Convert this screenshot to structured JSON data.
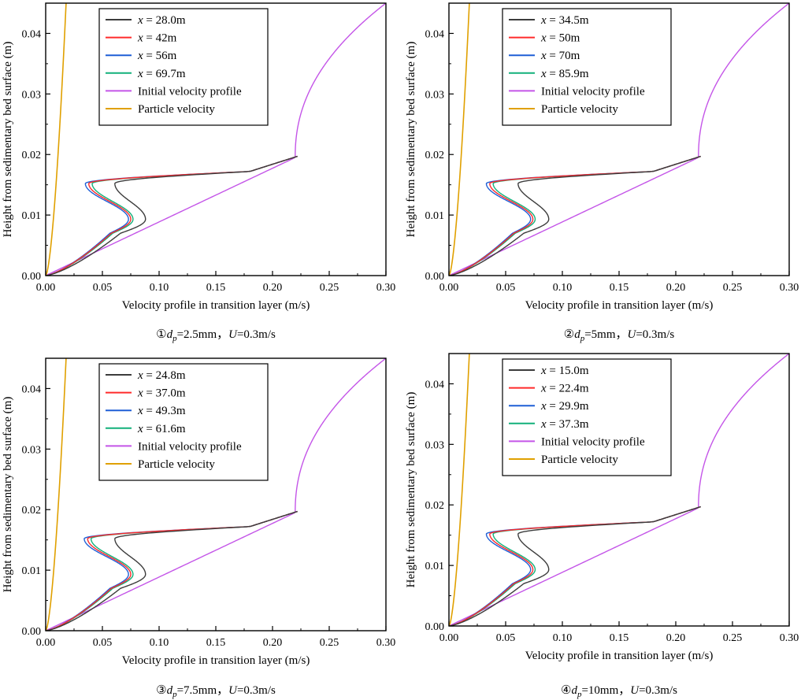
{
  "figure": {
    "line_colors": {
      "s1": "#3c3c3c",
      "s2": "#ff2a2a",
      "s3": "#1f5fd6",
      "s4": "#12b07a",
      "initial": "#c455e8",
      "particle": "#e0a000"
    }
  },
  "chart_data": [
    {
      "type": "line",
      "panel_id": "p1",
      "caption_num": "①",
      "caption_var": "d",
      "caption_sub": "p",
      "caption_eq": "=2.5mm，",
      "caption_u": "U",
      "caption_u_val": "=0.3m/s",
      "xlabel": "Velocity profile in transition layer (m/s)",
      "ylabel": "Height from sedimentary bed surface (m)",
      "xlim": [
        0,
        0.3
      ],
      "ylim": [
        0,
        0.045
      ],
      "xticks": [
        "0.00",
        "0.05",
        "0.10",
        "0.15",
        "0.20",
        "0.25",
        "0.30"
      ],
      "yticks": [
        "0.00",
        "0.01",
        "0.02",
        "0.03",
        "0.04"
      ],
      "legend_var": "x",
      "series": [
        {
          "key": "s1",
          "label": "= 28.0m",
          "min_u": 0.061,
          "bulge_u": 0.088
        },
        {
          "key": "s2",
          "label": "= 42m",
          "min_u": 0.038,
          "bulge_u": 0.075
        },
        {
          "key": "s3",
          "label": "= 56m",
          "min_u": 0.035,
          "bulge_u": 0.073
        },
        {
          "key": "s4",
          "label": "= 69.7m",
          "min_u": 0.041,
          "bulge_u": 0.077
        }
      ],
      "initial_label": "Initial velocity profile",
      "particle_label": "Particle velocity"
    },
    {
      "type": "line",
      "panel_id": "p2",
      "caption_num": "②",
      "caption_var": "d",
      "caption_sub": "p",
      "caption_eq": "=5mm，",
      "caption_u": "U",
      "caption_u_val": "=0.3m/s",
      "xlabel": "Velocity profile in transition layer (m/s)",
      "ylabel": "Height from sedimentary bed surface (m)",
      "xlim": [
        0,
        0.3
      ],
      "ylim": [
        0,
        0.045
      ],
      "xticks": [
        "0.00",
        "0.05",
        "0.10",
        "0.15",
        "0.20",
        "0.25",
        "0.30"
      ],
      "yticks": [
        "0.00",
        "0.01",
        "0.02",
        "0.03",
        "0.04"
      ],
      "legend_var": "x",
      "series": [
        {
          "key": "s1",
          "label": "= 34.5m",
          "min_u": 0.061,
          "bulge_u": 0.088
        },
        {
          "key": "s2",
          "label": "= 50m",
          "min_u": 0.036,
          "bulge_u": 0.074
        },
        {
          "key": "s3",
          "label": "= 70m",
          "min_u": 0.033,
          "bulge_u": 0.072
        },
        {
          "key": "s4",
          "label": "= 85.9m",
          "min_u": 0.039,
          "bulge_u": 0.076
        }
      ],
      "initial_label": "Initial velocity profile",
      "particle_label": "Particle velocity"
    },
    {
      "type": "line",
      "panel_id": "p3",
      "caption_num": "③",
      "caption_var": "d",
      "caption_sub": "p",
      "caption_eq": "=7.5mm，",
      "caption_u": "U",
      "caption_u_val": "=0.3m/s",
      "xlabel": "Velocity profile in transition layer (m/s)",
      "ylabel": "Height from sedimentary bed surface (m)",
      "xlim": [
        0,
        0.3
      ],
      "ylim": [
        0,
        0.045
      ],
      "xticks": [
        "0.00",
        "0.05",
        "0.10",
        "0.15",
        "0.20",
        "0.25",
        "0.30"
      ],
      "yticks": [
        "0.00",
        "0.01",
        "0.02",
        "0.03",
        "0.04"
      ],
      "legend_var": "x",
      "series": [
        {
          "key": "s1",
          "label": "= 24.8m",
          "min_u": 0.061,
          "bulge_u": 0.088
        },
        {
          "key": "s2",
          "label": "= 37.0m",
          "min_u": 0.037,
          "bulge_u": 0.075
        },
        {
          "key": "s3",
          "label": "= 49.3m",
          "min_u": 0.034,
          "bulge_u": 0.073
        },
        {
          "key": "s4",
          "label": "= 61.6m",
          "min_u": 0.04,
          "bulge_u": 0.077
        }
      ],
      "initial_label": "Initial velocity profile",
      "particle_label": "Particle velocity"
    },
    {
      "type": "line",
      "panel_id": "p4",
      "caption_num": "④",
      "caption_var": "d",
      "caption_sub": "p",
      "caption_eq": "=10mm，",
      "caption_u": "U",
      "caption_u_val": "=0.3m/s",
      "xlabel": "Velocity profile in transition layer (m/s)",
      "ylabel": "Height from sedimentary bed surface (m)",
      "xlim": [
        0,
        0.3
      ],
      "ylim": [
        0,
        0.045
      ],
      "xticks": [
        "0.00",
        "0.05",
        "0.10",
        "0.15",
        "0.20",
        "0.25",
        "0.30"
      ],
      "yticks": [
        "0.00",
        "0.01",
        "0.02",
        "0.03",
        "0.04"
      ],
      "legend_var": "x",
      "series": [
        {
          "key": "s1",
          "label": "= 15.0m",
          "min_u": 0.061,
          "bulge_u": 0.088
        },
        {
          "key": "s2",
          "label": "= 22.4m",
          "min_u": 0.036,
          "bulge_u": 0.074
        },
        {
          "key": "s3",
          "label": "= 29.9m",
          "min_u": 0.033,
          "bulge_u": 0.072
        },
        {
          "key": "s4",
          "label": "= 37.3m",
          "min_u": 0.039,
          "bulge_u": 0.076
        }
      ],
      "initial_label": "Initial velocity profile",
      "particle_label": "Particle velocity"
    }
  ]
}
